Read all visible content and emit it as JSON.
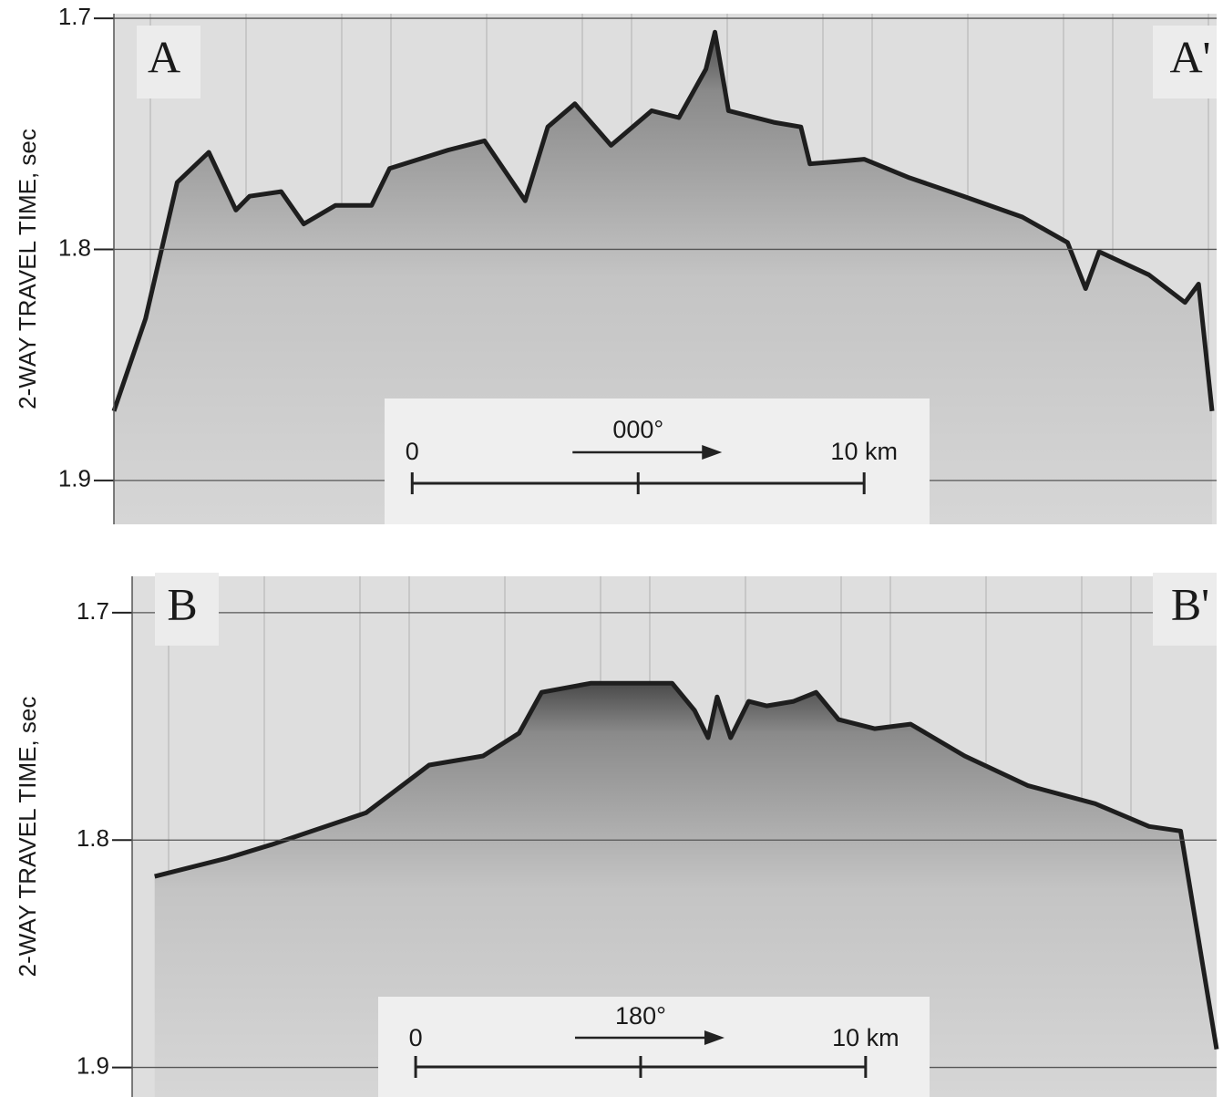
{
  "chart_data": [
    {
      "type": "line",
      "y_label": "2-WAY TRAVEL TIME,  sec",
      "left_label": "A",
      "right_label": "A'",
      "x": [
        -6.6,
        -5.9,
        -5.2,
        -4.5,
        -3.9,
        -3.6,
        -2.9,
        -2.4,
        -1.7,
        -0.9,
        -0.5,
        0.8,
        1.6,
        2.5,
        3.0,
        3.6,
        4.4,
        5.3,
        5.9,
        6.5,
        6.7,
        7.0,
        8.0,
        8.6,
        8.8,
        9.4,
        10.0,
        11.0,
        12.2,
        13.5,
        14.5,
        14.9,
        15.2,
        16.3,
        17.1,
        17.4,
        17.7
      ],
      "values": [
        1.87,
        1.83,
        1.771,
        1.758,
        1.783,
        1.777,
        1.775,
        1.789,
        1.781,
        1.781,
        1.765,
        1.757,
        1.753,
        1.779,
        1.747,
        1.737,
        1.755,
        1.74,
        1.743,
        1.722,
        1.706,
        1.74,
        1.745,
        1.747,
        1.763,
        1.762,
        1.761,
        1.769,
        1.777,
        1.786,
        1.797,
        1.817,
        1.801,
        1.811,
        1.823,
        1.815,
        1.87
      ],
      "xlim": [
        -6.6,
        17.8
      ],
      "ylim": [
        1.919,
        1.698
      ],
      "yticks": [
        1.7,
        1.8,
        1.9
      ],
      "grid": true,
      "color": "#1e1e1e",
      "scale_bar": {
        "heading": "000°",
        "ticks": [
          0,
          {
            "value": 10,
            "label": "10 km"
          }
        ],
        "midtick": 5
      }
    },
    {
      "type": "line",
      "y_label": "2-WAY TRAVEL TIME,  sec",
      "left_label": "B",
      "right_label": "B'",
      "x": [
        -5.8,
        -4.2,
        -3.2,
        -1.1,
        0.3,
        1.5,
        2.3,
        2.8,
        3.9,
        4.9,
        5.7,
        6.2,
        6.5,
        6.7,
        7.0,
        7.4,
        7.8,
        8.4,
        8.9,
        9.4,
        10.2,
        11.0,
        12.2,
        13.6,
        15.1,
        16.3,
        17.0,
        17.3,
        17.8
      ],
      "values": [
        1.816,
        1.808,
        1.802,
        1.788,
        1.767,
        1.763,
        1.753,
        1.735,
        1.731,
        1.731,
        1.731,
        1.743,
        1.755,
        1.737,
        1.755,
        1.739,
        1.741,
        1.739,
        1.735,
        1.747,
        1.751,
        1.749,
        1.763,
        1.776,
        1.784,
        1.794,
        1.796,
        1.832,
        1.892
      ],
      "xlim": [
        -6.3,
        17.8
      ],
      "ylim": [
        1.913,
        1.684
      ],
      "yticks": [
        1.7,
        1.8,
        1.9
      ],
      "grid": true,
      "color": "#1e1e1e",
      "scale_bar": {
        "heading": "180°",
        "ticks": [
          0,
          {
            "value": 10,
            "label": "10 km"
          }
        ],
        "midtick": 5
      }
    }
  ]
}
